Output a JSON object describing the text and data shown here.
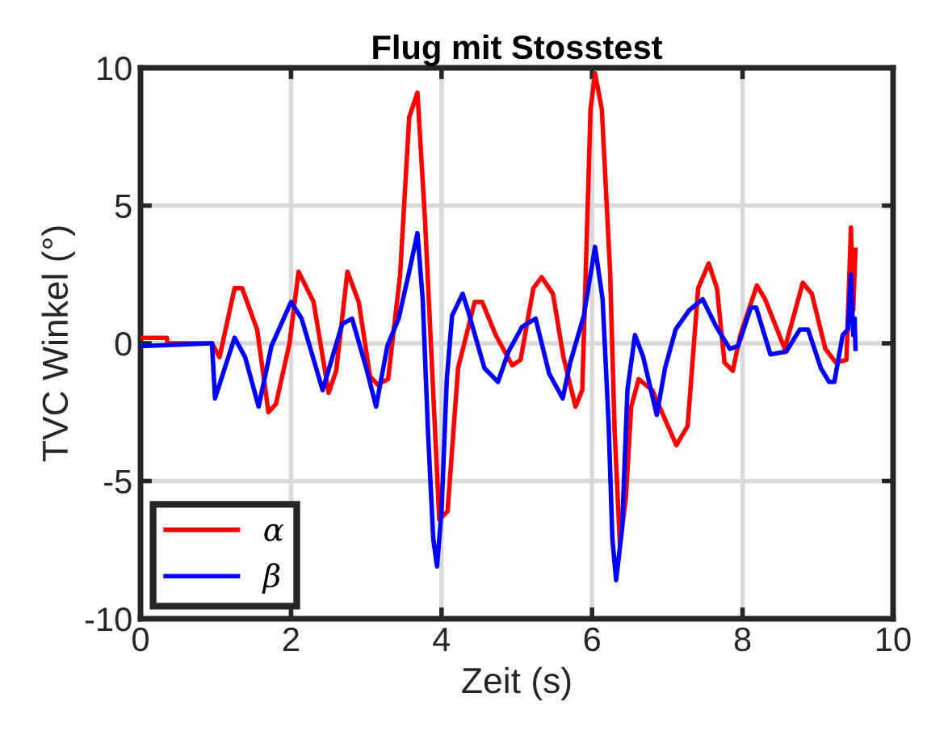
{
  "chart_data": {
    "type": "line",
    "title": "Flug mit Stosstest",
    "xlabel": "Zeit (s)",
    "ylabel": "TVC Winkel (°)",
    "xlim": [
      0,
      10
    ],
    "xticks": [
      0,
      2,
      4,
      6,
      8,
      10
    ],
    "ylim": [
      -10,
      10
    ],
    "yticks": [
      -10,
      -5,
      0,
      5,
      10
    ],
    "grid": true,
    "legend": "bottom left",
    "line_style": "solid",
    "marker": "none",
    "series": [
      {
        "name": "α",
        "color": "#ff0000",
        "x": [
          0,
          0.35,
          0.36,
          0.95,
          1.05,
          1.25,
          1.35,
          1.55,
          1.7,
          1.8,
          1.98,
          2.1,
          2.3,
          2.5,
          2.6,
          2.75,
          2.9,
          3.05,
          3.15,
          3.29,
          3.45,
          3.57,
          3.68,
          3.78,
          3.97,
          4.08,
          4.22,
          4.44,
          4.54,
          4.72,
          4.94,
          5.05,
          5.22,
          5.33,
          5.48,
          5.62,
          5.78,
          5.87,
          5.98,
          6.04,
          6.13,
          6.24,
          6.3,
          6.37,
          6.45,
          6.52,
          6.62,
          6.8,
          7.12,
          7.27,
          7.41,
          7.55,
          7.66,
          7.76,
          7.87,
          7.97,
          8.19,
          8.3,
          8.56,
          8.8,
          8.92,
          9.1,
          9.24,
          9.38,
          9.44,
          9.47,
          9.5
        ],
        "values": [
          0.2,
          0.2,
          0,
          0,
          -0.5,
          2,
          2,
          0.5,
          -2.5,
          -2.2,
          0,
          2.6,
          1.5,
          -1.8,
          -1,
          2.6,
          1.5,
          -1.2,
          -1.5,
          -1.3,
          2.5,
          8.2,
          9.1,
          4.5,
          -6.4,
          -6.1,
          -0.9,
          1.5,
          1.5,
          0.3,
          -0.8,
          -0.6,
          2,
          2.4,
          1.8,
          -0.5,
          -2.3,
          -1.7,
          8.5,
          9.8,
          8.5,
          2.6,
          -3.2,
          -7.3,
          -5.6,
          -2.3,
          -1.3,
          -1.7,
          -3.7,
          -3,
          2,
          2.9,
          2,
          -0.7,
          -1,
          0.3,
          2.1,
          1.6,
          -0.2,
          2.2,
          1.8,
          -0.2,
          -0.7,
          -0.6,
          4.2,
          1.2,
          3.4
        ]
      },
      {
        "name": "β",
        "color": "#0000ff",
        "x": [
          0,
          0.95,
          0.99,
          1.25,
          1.39,
          1.57,
          1.74,
          2.0,
          2.14,
          2.42,
          2.68,
          2.81,
          3.0,
          3.13,
          3.28,
          3.43,
          3.57,
          3.68,
          3.75,
          3.82,
          3.89,
          3.94,
          4.0,
          4.07,
          4.14,
          4.28,
          4.35,
          4.57,
          4.75,
          4.89,
          5.07,
          5.25,
          5.43,
          5.61,
          5.71,
          5.89,
          6.04,
          6.14,
          6.22,
          6.27,
          6.32,
          6.4,
          6.47,
          6.57,
          6.68,
          6.86,
          6.97,
          7.11,
          7.29,
          7.47,
          7.65,
          7.83,
          7.94,
          8.11,
          8.18,
          8.37,
          8.58,
          8.76,
          8.87,
          9.04,
          9.15,
          9.22,
          9.33,
          9.4,
          9.44,
          9.47,
          9.49,
          9.5
        ],
        "values": [
          -0.1,
          0,
          -2,
          0.2,
          -0.5,
          -2.3,
          -0.1,
          1.5,
          0.9,
          -1.7,
          0.7,
          0.9,
          -0.9,
          -2.3,
          -0.1,
          0.9,
          2.6,
          4,
          1.6,
          -3.2,
          -7.1,
          -8.1,
          -6.1,
          -1.3,
          1,
          1.8,
          1.2,
          -0.9,
          -1.4,
          -0.3,
          0.6,
          0.9,
          -1.1,
          -2,
          -0.7,
          1,
          3.5,
          1.6,
          -2.9,
          -7.1,
          -8.6,
          -6.7,
          -1.7,
          0.3,
          -0.5,
          -2.6,
          -0.9,
          0.5,
          1.2,
          1.6,
          0.6,
          -0.2,
          -0.1,
          1.3,
          1.3,
          -0.4,
          -0.3,
          0.5,
          0.5,
          -0.9,
          -1.4,
          -1.4,
          0.3,
          0.5,
          2.5,
          0.3,
          0.9,
          -0.2
        ]
      }
    ]
  }
}
